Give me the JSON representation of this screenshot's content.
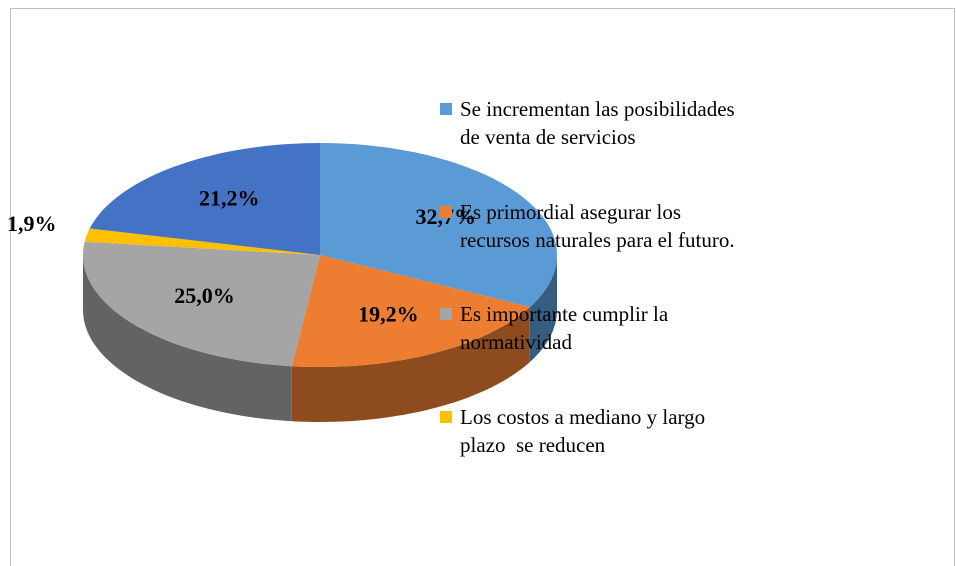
{
  "chart_data": {
    "type": "pie3d",
    "categories": [
      "Se incrementan las posibilidades de venta de servicios",
      "Es primordial asegurar los recursos naturales para el futuro.",
      "Es importante cumplir la normatividad",
      "Los costos a mediano y largo plazo  se reducen",
      null
    ],
    "values": [
      32.7,
      19.2,
      25.0,
      1.9,
      21.2
    ],
    "value_labels": [
      "32,7%",
      "19,2%",
      "25,0%",
      "1,9%",
      "21,2%"
    ],
    "colors": [
      "#5b9bd5",
      "#ed7d31",
      "#a5a5a5",
      "#ffc000",
      "#4472c4"
    ],
    "legend": "right"
  }
}
